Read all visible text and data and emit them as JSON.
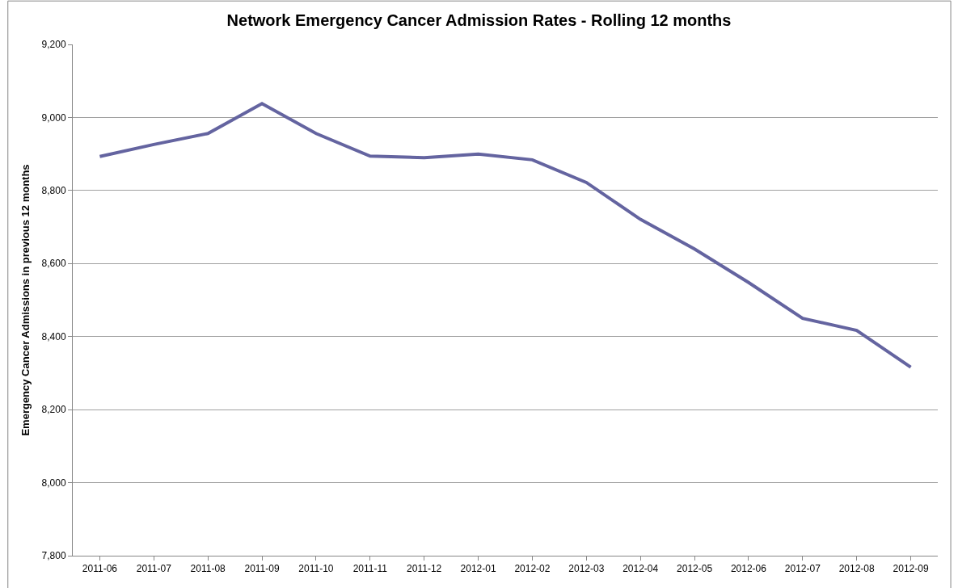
{
  "chart_data": {
    "type": "line",
    "title": "Network Emergency Cancer Admission Rates - Rolling 12 months",
    "ylabel": "Emergency Cancer Admissions in previous 12 months",
    "categories": [
      "2011-06",
      "2011-07",
      "2011-08",
      "2011-09",
      "2011-10",
      "2011-11",
      "2011-12",
      "2012-01",
      "2012-02",
      "2012-03",
      "2012-04",
      "2012-05",
      "2012-06",
      "2012-07",
      "2012-08",
      "2012-09"
    ],
    "series": [
      {
        "color": "#6464a0",
        "values": [
          8893,
          8926,
          8956,
          9038,
          8956,
          8894,
          8890,
          8900,
          8884,
          8822,
          8721,
          8640,
          8548,
          8450,
          8417,
          8316
        ]
      }
    ],
    "ylim": [
      7800,
      9200
    ],
    "yticks": [
      {
        "value": 7800,
        "label": "7,800"
      },
      {
        "value": 8000,
        "label": "8,000"
      },
      {
        "value": 8200,
        "label": "8,200"
      },
      {
        "value": 8400,
        "label": "8,400"
      },
      {
        "value": 8600,
        "label": "8,600"
      },
      {
        "value": 8800,
        "label": "8,800"
      },
      {
        "value": 9000,
        "label": "9,000"
      },
      {
        "value": 9200,
        "label": "9,200"
      }
    ],
    "grid": "y",
    "marker": "none",
    "line_style": "solid"
  }
}
